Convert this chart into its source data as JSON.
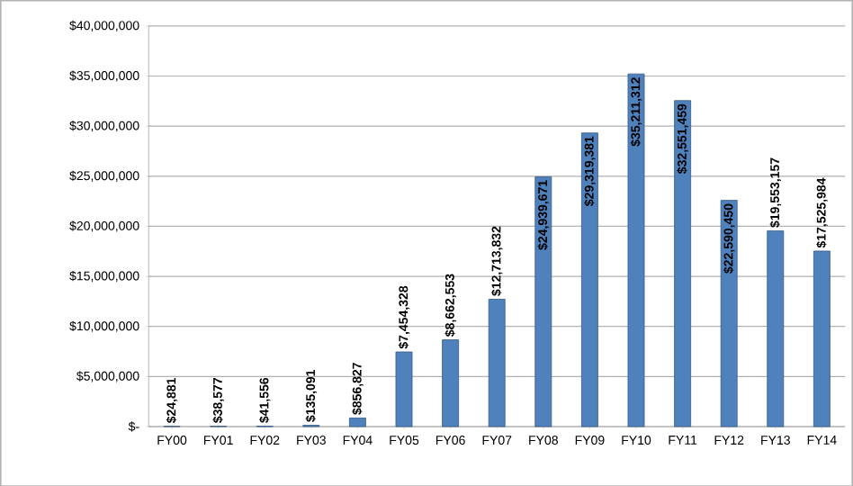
{
  "chart_data": {
    "type": "bar",
    "categories": [
      "FY00",
      "FY01",
      "FY02",
      "FY03",
      "FY04",
      "FY05",
      "FY06",
      "FY07",
      "FY08",
      "FY09",
      "FY10",
      "FY11",
      "FY12",
      "FY13",
      "FY14"
    ],
    "values": [
      24881,
      38577,
      41556,
      135091,
      856827,
      7454328,
      8662553,
      12713832,
      24939671,
      29319381,
      35211312,
      32551459,
      22590450,
      19553157,
      17525984
    ],
    "value_labels": [
      "$24,881",
      "$38,577",
      "$41,556",
      "$135,091",
      "$856,827",
      "$7,454,328",
      "$8,662,553",
      "$12,713,832",
      "$24,939,671",
      "$29,319,381",
      "$35,211,312",
      "$32,551,459",
      "$22,590,450",
      "$19,553,157",
      "$17,525,984"
    ],
    "color": "#4f81bd",
    "ylim": [
      0,
      40000000
    ],
    "yticks": [
      {
        "value": 0,
        "label": "$-"
      },
      {
        "value": 5000000,
        "label": "$5,000,000"
      },
      {
        "value": 10000000,
        "label": "$10,000,000"
      },
      {
        "value": 15000000,
        "label": "$15,000,000"
      },
      {
        "value": 20000000,
        "label": "$20,000,000"
      },
      {
        "value": 25000000,
        "label": "$25,000,000"
      },
      {
        "value": 30000000,
        "label": "$30,000,000"
      },
      {
        "value": 35000000,
        "label": "$35,000,000"
      },
      {
        "value": 40000000,
        "label": "$40,000,000"
      }
    ],
    "grid": "y"
  }
}
